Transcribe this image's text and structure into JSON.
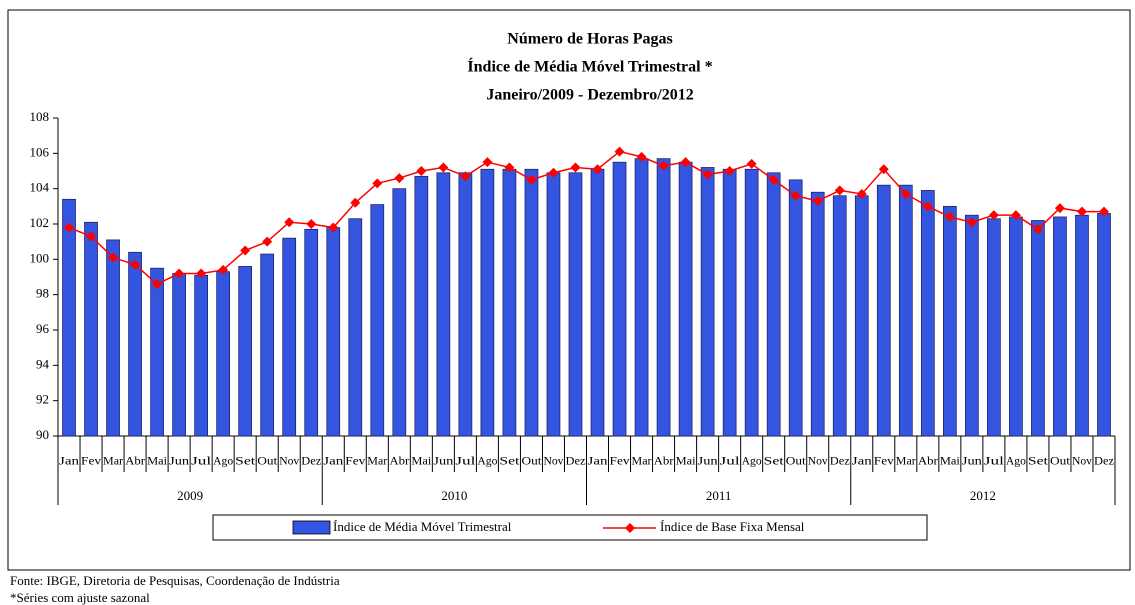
{
  "chart_data": {
    "type": "bar_line",
    "title": [
      "Número de Horas Pagas",
      "Índice de Média Móvel Trimestral *",
      "Janeiro/2009 - Dezembro/2012"
    ],
    "categories": [
      "Jan",
      "Fev",
      "Mar",
      "Abr",
      "Mai",
      "Jun",
      "Jul",
      "Ago",
      "Set",
      "Out",
      "Nov",
      "Dez",
      "Jan",
      "Fev",
      "Mar",
      "Abr",
      "Mai",
      "Jun",
      "Jul",
      "Ago",
      "Set",
      "Out",
      "Nov",
      "Dez",
      "Jan",
      "Fev",
      "Mar",
      "Abr",
      "Mai",
      "Jun",
      "Jul",
      "Ago",
      "Set",
      "Out",
      "Nov",
      "Dez",
      "Jan",
      "Fev",
      "Mar",
      "Abr",
      "Mai",
      "Jun",
      "Jul",
      "Ago",
      "Set",
      "Out",
      "Nov",
      "Dez"
    ],
    "years": [
      "2009",
      "2010",
      "2011",
      "2012"
    ],
    "series": [
      {
        "name": "Índice de Média Móvel Trimestral",
        "type": "bar",
        "color": "#3355e0",
        "values": [
          103.4,
          102.1,
          101.1,
          100.4,
          99.5,
          99.2,
          99.1,
          99.3,
          99.6,
          100.3,
          101.2,
          101.7,
          101.8,
          102.3,
          103.1,
          104.0,
          104.7,
          104.9,
          104.9,
          105.1,
          105.1,
          105.1,
          104.9,
          104.9,
          105.1,
          105.5,
          105.7,
          105.7,
          105.5,
          105.2,
          105.1,
          105.1,
          104.9,
          104.5,
          103.8,
          103.6,
          103.6,
          104.2,
          104.2,
          103.9,
          103.0,
          102.5,
          102.3,
          102.4,
          102.2,
          102.4,
          102.5,
          102.6
        ]
      },
      {
        "name": "Índice de Base Fixa Mensal",
        "type": "line",
        "color": "#ff0000",
        "values": [
          101.8,
          101.3,
          100.1,
          99.7,
          98.6,
          99.2,
          99.2,
          99.4,
          100.5,
          101.0,
          102.1,
          102.0,
          101.8,
          103.2,
          104.3,
          104.6,
          105.0,
          105.2,
          104.7,
          105.5,
          105.2,
          104.5,
          104.9,
          105.2,
          105.1,
          106.1,
          105.8,
          105.3,
          105.5,
          104.8,
          105.0,
          105.4,
          104.5,
          103.6,
          103.3,
          103.9,
          103.7,
          105.1,
          103.7,
          103.0,
          102.4,
          102.1,
          102.5,
          102.5,
          101.7,
          102.9,
          102.7,
          102.7
        ]
      }
    ],
    "ylim": [
      90,
      108
    ],
    "yticks": [
      90,
      92,
      94,
      96,
      98,
      100,
      102,
      104,
      106,
      108
    ],
    "grid": false,
    "legend": "bottom"
  },
  "footer": [
    "Fonte: IBGE, Diretoria de Pesquisas, Coordenação de Indústria",
    "*Séries com ajuste sazonal"
  ]
}
